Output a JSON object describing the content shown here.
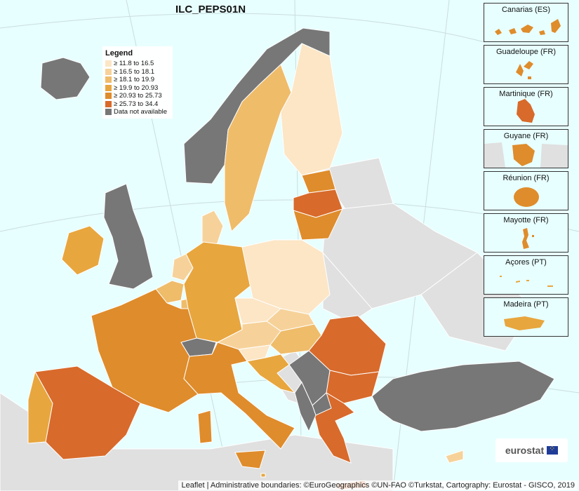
{
  "map": {
    "title": "ILC_PEPS01N",
    "legend": {
      "title": "Legend",
      "classes": [
        {
          "label": "≥ 11.8 to 16.5",
          "color": "#fce6c6"
        },
        {
          "label": "≥ 16.5 to 18.1",
          "color": "#f6d29a"
        },
        {
          "label": "≥ 18.1 to 19.9",
          "color": "#efbc6a"
        },
        {
          "label": "≥ 19.9 to 20.93",
          "color": "#e8a63e"
        },
        {
          "label": "≥ 20.93 to 25.73",
          "color": "#df8c2c"
        },
        {
          "label": "≥ 25.73 to 34.4",
          "color": "#d86a2b"
        },
        {
          "label": "Data not available",
          "color": "#777777"
        }
      ]
    },
    "colors": {
      "sea": "#e8ffff",
      "non_covered": "#e0e0e0",
      "border": "#ffffff"
    },
    "insets": [
      {
        "label": "Canarias (ES)",
        "class": 5
      },
      {
        "label": "Guadeloupe (FR)",
        "class": 5
      },
      {
        "label": "Martinique (FR)",
        "class": 6
      },
      {
        "label": "Guyane (FR)",
        "class": 5
      },
      {
        "label": "Réunion (FR)",
        "class": 5
      },
      {
        "label": "Mayotte (FR)",
        "class": 5
      },
      {
        "label": "Açores (PT)",
        "class": 4
      },
      {
        "label": "Madeira (PT)",
        "class": 4
      }
    ],
    "regions": [
      {
        "name": "Iceland",
        "class": 7
      },
      {
        "name": "Norway",
        "class": 7
      },
      {
        "name": "Sweden",
        "class": 3
      },
      {
        "name": "Finland",
        "class": 1
      },
      {
        "name": "Estonia",
        "class": 5
      },
      {
        "name": "Latvia",
        "class": 6
      },
      {
        "name": "Lithuania",
        "class": 5
      },
      {
        "name": "Denmark",
        "class": 2
      },
      {
        "name": "Ireland",
        "class": 4
      },
      {
        "name": "United Kingdom",
        "class": 7
      },
      {
        "name": "Netherlands",
        "class": 2
      },
      {
        "name": "Belgium",
        "class": 3
      },
      {
        "name": "Luxembourg",
        "class": 3
      },
      {
        "name": "Germany",
        "class": 4
      },
      {
        "name": "Poland",
        "class": 1
      },
      {
        "name": "Czechia",
        "class": 1
      },
      {
        "name": "Slovakia",
        "class": 2
      },
      {
        "name": "Austria",
        "class": 2
      },
      {
        "name": "Hungary",
        "class": 3
      },
      {
        "name": "Slovenia",
        "class": 1
      },
      {
        "name": "Croatia",
        "class": 4
      },
      {
        "name": "Switzerland",
        "class": 7
      },
      {
        "name": "France",
        "class": 5
      },
      {
        "name": "Spain",
        "class": 6
      },
      {
        "name": "Portugal",
        "class": 4
      },
      {
        "name": "Italy",
        "class": 5
      },
      {
        "name": "Romania",
        "class": 6
      },
      {
        "name": "Bulgaria",
        "class": 6
      },
      {
        "name": "Greece",
        "class": 6
      },
      {
        "name": "Serbia",
        "class": 7
      },
      {
        "name": "North Macedonia",
        "class": 7
      },
      {
        "name": "Montenegro",
        "class": 7
      },
      {
        "name": "Albania",
        "class": 7
      },
      {
        "name": "Turkey",
        "class": 7
      },
      {
        "name": "Malta",
        "class": 4
      },
      {
        "name": "Cyprus",
        "class": 2
      }
    ],
    "logo": "eurostat",
    "attribution": "Leaflet | Administrative boundaries: ©EuroGeographics ©UN-FAO ©Turkstat, Cartography: Eurostat - GISCO, 2019"
  }
}
